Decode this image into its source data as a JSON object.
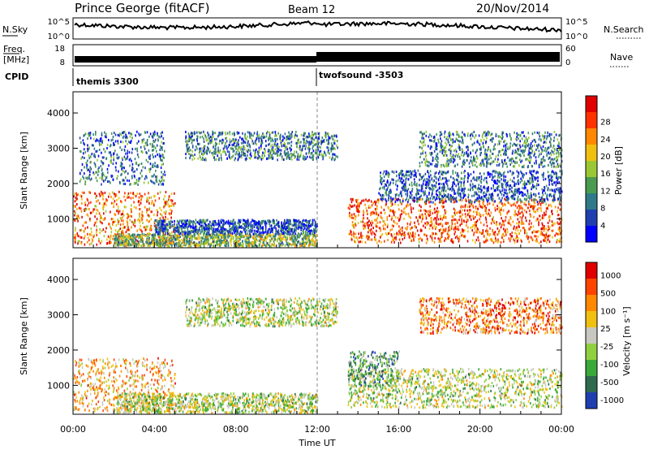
{
  "header": {
    "title": "Prince George (fitACF)",
    "beam": "Beam 12",
    "date": "20/Nov/2014"
  },
  "strips": {
    "nsky_label": "N.Sky",
    "nsky_ticks": [
      "10^5",
      "10^0"
    ],
    "nsearch_label": "N.Search",
    "nsearch_ticks": [
      "10^5",
      "10^0"
    ],
    "freq_label_1": "Freq.",
    "freq_label_2": "[MHz]",
    "freq_ticks": [
      "18",
      "8"
    ],
    "nave_label": "Nave",
    "nave_ticks": [
      "60",
      "0"
    ],
    "cpid_label": "CPID",
    "cpid_segments": [
      {
        "name": "themis 3300",
        "start_hour": 0
      },
      {
        "name": "twofsound -3503",
        "start_hour": 12
      }
    ]
  },
  "time_axis": {
    "label": "Time UT",
    "ticks": [
      "00:00",
      "04:00",
      "08:00",
      "12:00",
      "16:00",
      "20:00",
      "00:00"
    ]
  },
  "chart_data": [
    {
      "type": "heatmap",
      "name": "power",
      "ylabel": "Slant Range [km]",
      "yticks": [
        "1000",
        "2000",
        "3000",
        "4000"
      ],
      "ylim": [
        180,
        4600
      ],
      "xlim_hours": [
        0,
        24
      ],
      "colorbar_label": "Power [dB]",
      "colorbar_ticks": [
        "4",
        "8",
        "12",
        "16",
        "20",
        "24",
        "28"
      ],
      "colorbar_colors": [
        "#0000ff",
        "#1f3fb0",
        "#2f7a8a",
        "#4a9a50",
        "#9ac834",
        "#f0c010",
        "#ff8800",
        "#ff3300",
        "#e00000"
      ],
      "regions": [
        {
          "t0": 0.0,
          "t1": 5.0,
          "r0": 300,
          "r1": 1800,
          "level": 0.75
        },
        {
          "t0": 0.3,
          "t1": 4.5,
          "r0": 2000,
          "r1": 3500,
          "level": 0.25
        },
        {
          "t0": 2.0,
          "t1": 12.0,
          "r0": 250,
          "r1": 600,
          "level": 0.45
        },
        {
          "t0": 4.0,
          "t1": 12.0,
          "r0": 600,
          "r1": 1000,
          "level": 0.2
        },
        {
          "t0": 5.5,
          "t1": 13.0,
          "r0": 2700,
          "r1": 3500,
          "level": 0.3
        },
        {
          "t0": 13.5,
          "t1": 24.0,
          "r0": 350,
          "r1": 1600,
          "level": 0.8
        },
        {
          "t0": 15.0,
          "t1": 24.0,
          "r0": 1500,
          "r1": 2400,
          "level": 0.2
        },
        {
          "t0": 17.0,
          "t1": 24.0,
          "r0": 2500,
          "r1": 3500,
          "level": 0.3
        }
      ]
    },
    {
      "type": "heatmap",
      "name": "velocity",
      "ylabel": "Slant Range [km]",
      "yticks": [
        "1000",
        "2000",
        "3000",
        "4000"
      ],
      "ylim": [
        180,
        4600
      ],
      "xlim_hours": [
        0,
        24
      ],
      "colorbar_label": "Velocity [m s⁻¹]",
      "colorbar_ticks": [
        "1000",
        "500",
        "100",
        "25",
        "-25",
        "-100",
        "-500",
        "-1000"
      ],
      "colorbar_colors": [
        "#1f3fb0",
        "#2f6a50",
        "#3aa83a",
        "#90d040",
        "#c8c8c0",
        "#f0c010",
        "#ff8800",
        "#ff4400",
        "#e00000"
      ],
      "regions": [
        {
          "t0": 0.0,
          "t1": 5.0,
          "r0": 300,
          "r1": 1800,
          "level": 0.65
        },
        {
          "t0": 2.0,
          "t1": 12.0,
          "r0": 250,
          "r1": 800,
          "level": 0.45
        },
        {
          "t0": 5.5,
          "t1": 13.0,
          "r0": 2700,
          "r1": 3500,
          "level": 0.45
        },
        {
          "t0": 13.5,
          "t1": 24.0,
          "r0": 400,
          "r1": 1500,
          "level": 0.45
        },
        {
          "t0": 13.5,
          "t1": 16.0,
          "r0": 1000,
          "r1": 2000,
          "level": 0.3
        },
        {
          "t0": 17.0,
          "t1": 24.0,
          "r0": 2500,
          "r1": 3500,
          "level": 0.75
        }
      ]
    }
  ]
}
